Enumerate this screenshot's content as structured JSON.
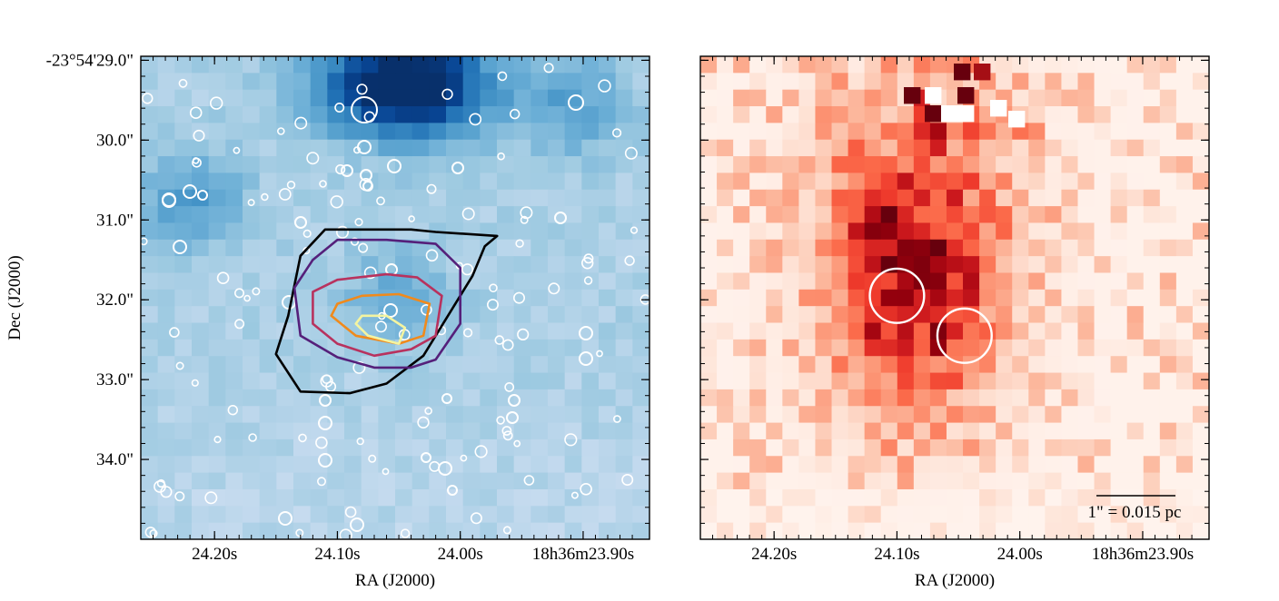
{
  "chart_data": [
    {
      "type": "heatmap",
      "panel": "left",
      "colormap": "Blues",
      "xlabel": "RA (J2000)",
      "ylabel": "Dec (J2000)",
      "x_tick_labels": [
        "24.20s",
        "24.10s",
        "24.00s",
        "18h36m23.90s"
      ],
      "x_tick_values_s": [
        24.2,
        24.1,
        24.0,
        23.9
      ],
      "y_tick_labels": [
        "-23°54'29.0\"",
        "30.0\"",
        "31.0\"",
        "32.0\"",
        "33.0\"",
        "34.0\""
      ],
      "y_tick_values_arcsec": [
        29.0,
        30.0,
        31.0,
        32.0,
        33.0,
        34.0
      ],
      "xlim_s": [
        24.26,
        23.846
      ],
      "ylim_arcsec": [
        35.0,
        28.95
      ],
      "contour_colors": [
        "#000000",
        "#55207a",
        "#b8325e",
        "#f08a1c",
        "#f4f4a0"
      ],
      "contours": [
        {
          "level": 1,
          "ra": [
            24.11,
            24.04,
            24.02,
            23.97,
            23.98,
            23.99,
            24.03,
            24.06,
            24.09,
            24.13,
            24.15,
            24.14,
            24.13
          ],
          "dec": [
            31.12,
            31.12,
            31.15,
            31.2,
            31.33,
            31.7,
            32.7,
            33.05,
            33.17,
            33.15,
            32.68,
            32.2,
            31.45
          ]
        },
        {
          "level": 2,
          "ra": [
            24.1,
            24.06,
            24.02,
            24.0,
            24.0,
            24.02,
            24.04,
            24.07,
            24.1,
            24.13,
            24.135,
            24.12
          ],
          "dec": [
            31.25,
            31.25,
            31.3,
            31.6,
            32.3,
            32.75,
            32.85,
            32.85,
            32.72,
            32.45,
            31.85,
            31.5
          ]
        },
        {
          "level": 3,
          "ra": [
            24.1,
            24.06,
            24.035,
            24.015,
            24.02,
            24.04,
            24.07,
            24.1,
            24.12,
            24.12
          ],
          "dec": [
            31.75,
            31.68,
            31.72,
            31.95,
            32.45,
            32.62,
            32.7,
            32.55,
            32.3,
            31.9
          ]
        },
        {
          "level": 4,
          "ra": [
            24.08,
            24.05,
            24.025,
            24.03,
            24.05,
            24.085,
            24.105,
            24.1
          ],
          "dec": [
            31.95,
            31.93,
            32.05,
            32.45,
            32.55,
            32.45,
            32.2,
            32.05
          ]
        },
        {
          "level": 5,
          "ra": [
            24.08,
            24.06,
            24.045,
            24.05,
            24.075,
            24.085
          ],
          "dec": [
            32.2,
            32.2,
            32.35,
            32.55,
            32.45,
            32.3
          ]
        }
      ]
    },
    {
      "type": "heatmap",
      "panel": "right",
      "colormap": "Reds",
      "xlabel": "RA (J2000)",
      "x_tick_labels": [
        "24.20s",
        "24.10s",
        "24.00s",
        "18h36m23.90s"
      ],
      "x_tick_values_s": [
        24.2,
        24.1,
        24.0,
        23.9
      ],
      "xlim_s": [
        24.26,
        23.846
      ],
      "ylim_arcsec": [
        35.0,
        28.95
      ],
      "scalebar_label": "1\" = 0.015 pc",
      "scalebar_length_arcsec": 1.0,
      "markers": [
        {
          "ra": 24.1,
          "dec": 31.95,
          "radius_arcsec": 0.34
        },
        {
          "ra": 24.045,
          "dec": 32.45,
          "radius_arcsec": 0.34
        }
      ]
    }
  ]
}
